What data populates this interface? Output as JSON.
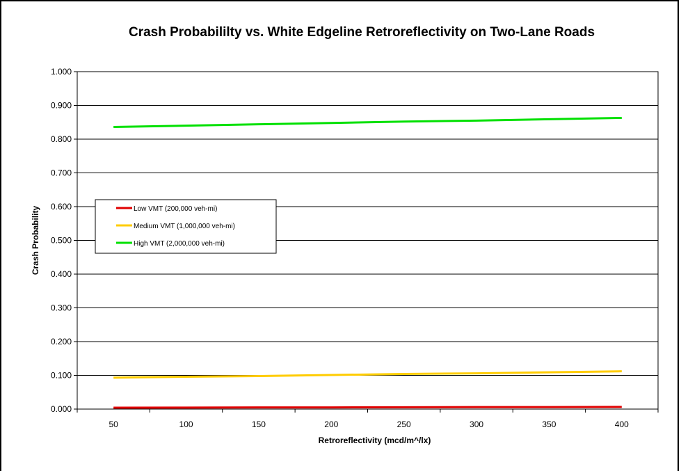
{
  "chart_data": {
    "type": "line",
    "title": "Crash Probabililty vs. White Edgeline Retroreflectivity on Two-Lane Roads",
    "xlabel": "Retroreflectivity (mcd/m^/lx)",
    "ylabel": "Crash Probability",
    "x": [
      50,
      100,
      150,
      200,
      250,
      300,
      350,
      400
    ],
    "x_tick_labels": [
      "50",
      "100",
      "150",
      "200",
      "250",
      "300",
      "350",
      "400"
    ],
    "ylim": [
      0,
      1
    ],
    "y_tick_labels": [
      "0.000",
      "0.100",
      "0.200",
      "0.300",
      "0.400",
      "0.500",
      "0.600",
      "0.700",
      "0.800",
      "0.900",
      "1.000"
    ],
    "grid": "horizontal",
    "legend_position": "left-middle",
    "series": [
      {
        "name": "Low VMT (200,000 veh-mi)",
        "color": "#e00000",
        "values": [
          0.004,
          0.0045,
          0.005,
          0.005,
          0.0055,
          0.006,
          0.006,
          0.0065
        ]
      },
      {
        "name": "Medium VMT (1,000,000 veh-mi)",
        "color": "#ffcc00",
        "values": [
          0.093,
          0.096,
          0.098,
          0.101,
          0.104,
          0.106,
          0.109,
          0.112
        ]
      },
      {
        "name": "High VMT (2,000,000 veh-mi)",
        "color": "#00e000",
        "values": [
          0.836,
          0.84,
          0.844,
          0.848,
          0.852,
          0.855,
          0.859,
          0.863
        ]
      }
    ]
  }
}
